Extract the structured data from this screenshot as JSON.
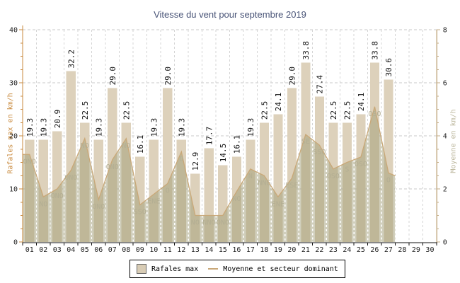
{
  "title": "Vitesse du vent pour septembre 2019",
  "axes": {
    "left_label": "Rafales max en km/h",
    "right_label": "Moyenne en km/h",
    "left_ticks": [
      0,
      10,
      20,
      30,
      40
    ],
    "right_ticks": [
      0,
      2,
      4,
      6,
      8
    ]
  },
  "legend": {
    "bar_label": "Rafales max",
    "line_label": "Moyenne et secteur dominant"
  },
  "colors": {
    "bar": "#ddd1bb",
    "area_fill": "#9d9a71",
    "line": "#c9a878",
    "sector_label": "#b3ae93",
    "left_axis": "#c8883c",
    "right_axis": "#c4ad87",
    "grid_h": "#c9c9c9",
    "grid_v_gray": "#d4d4d4",
    "grid_v_white": "#ffffff",
    "tick_text": "#222222",
    "bar_label_text": "#111111",
    "x_axis": "#111111",
    "title_text": "#4a5578"
  },
  "chart_data": {
    "type": "bar",
    "title": "Vitesse du vent pour septembre 2019",
    "xlabel": "",
    "ylabel": "Rafales max en km/h",
    "ylabel_right": "Moyenne en km/h",
    "ylim_left": [
      0,
      40
    ],
    "ylim_right": [
      0,
      8
    ],
    "grid": true,
    "legend_position": "bottom-center",
    "categories": [
      "01",
      "02",
      "03",
      "04",
      "05",
      "06",
      "07",
      "08",
      "09",
      "10",
      "11",
      "12",
      "13",
      "14",
      "15",
      "16",
      "17",
      "18",
      "19",
      "20",
      "21",
      "22",
      "23",
      "24",
      "25",
      "26",
      "27",
      "28",
      "29",
      "30"
    ],
    "series": [
      {
        "name": "Rafales max",
        "type": "bar",
        "axis": "left",
        "unit": "km/h",
        "values": [
          19.3,
          19.3,
          20.9,
          32.2,
          22.5,
          19.3,
          29.0,
          22.5,
          16.1,
          19.3,
          29.0,
          19.3,
          12.9,
          17.7,
          14.5,
          16.1,
          19.3,
          22.5,
          24.1,
          29.0,
          33.8,
          27.4,
          22.5,
          22.5,
          24.1,
          33.8,
          30.6,
          null,
          null,
          null
        ]
      },
      {
        "name": "Moyenne et secteur dominant",
        "type": "line-area",
        "axis": "right",
        "unit": "km/h",
        "values": [
          3.3,
          1.7,
          2.0,
          2.7,
          3.9,
          1.6,
          3.1,
          3.9,
          1.4,
          1.8,
          2.2,
          3.4,
          1.0,
          1.0,
          1.0,
          1.9,
          2.75,
          2.5,
          1.7,
          2.4,
          4.05,
          3.65,
          2.75,
          3.0,
          3.2,
          5.1,
          2.6,
          null,
          null,
          null
        ],
        "sector_labels": [
          "ONO",
          "NO",
          "ONO",
          "ONO",
          "NO",
          "ONO",
          "ONO",
          "NO",
          "SSO",
          "ENE",
          "O",
          "O",
          "NO",
          "NNO",
          "ONO",
          "NO",
          "N",
          "NNE",
          "ENE",
          "ESE",
          "SE",
          "SSO",
          "OSO",
          "S",
          "OSO",
          "OSO",
          "O",
          null,
          null,
          null
        ]
      }
    ]
  }
}
